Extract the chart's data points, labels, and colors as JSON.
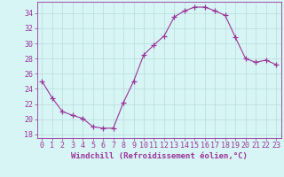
{
  "x": [
    0,
    1,
    2,
    3,
    4,
    5,
    6,
    7,
    8,
    9,
    10,
    11,
    12,
    13,
    14,
    15,
    16,
    17,
    18,
    19,
    20,
    21,
    22,
    23
  ],
  "y": [
    25.0,
    22.8,
    21.0,
    20.5,
    20.1,
    19.0,
    18.8,
    18.8,
    22.2,
    25.0,
    28.5,
    29.8,
    31.0,
    33.5,
    34.3,
    34.8,
    34.8,
    34.3,
    33.7,
    30.8,
    28.0,
    27.5,
    27.8,
    27.2
  ],
  "line_color": "#993399",
  "marker": "+",
  "marker_size": 4,
  "bg_color": "#d8f5f5",
  "grid_color": "#b8dada",
  "xlabel": "Windchill (Refroidissement éolien,°C)",
  "xlim": [
    -0.5,
    23.5
  ],
  "ylim": [
    17.5,
    35.5
  ],
  "yticks": [
    18,
    20,
    22,
    24,
    26,
    28,
    30,
    32,
    34
  ],
  "xticks": [
    0,
    1,
    2,
    3,
    4,
    5,
    6,
    7,
    8,
    9,
    10,
    11,
    12,
    13,
    14,
    15,
    16,
    17,
    18,
    19,
    20,
    21,
    22,
    23
  ],
  "tick_color": "#993399",
  "label_color": "#993399",
  "axis_color": "#993399",
  "font_size": 6.0,
  "xlabel_fontsize": 6.5,
  "linewidth": 0.8,
  "markeredgewidth": 0.9
}
